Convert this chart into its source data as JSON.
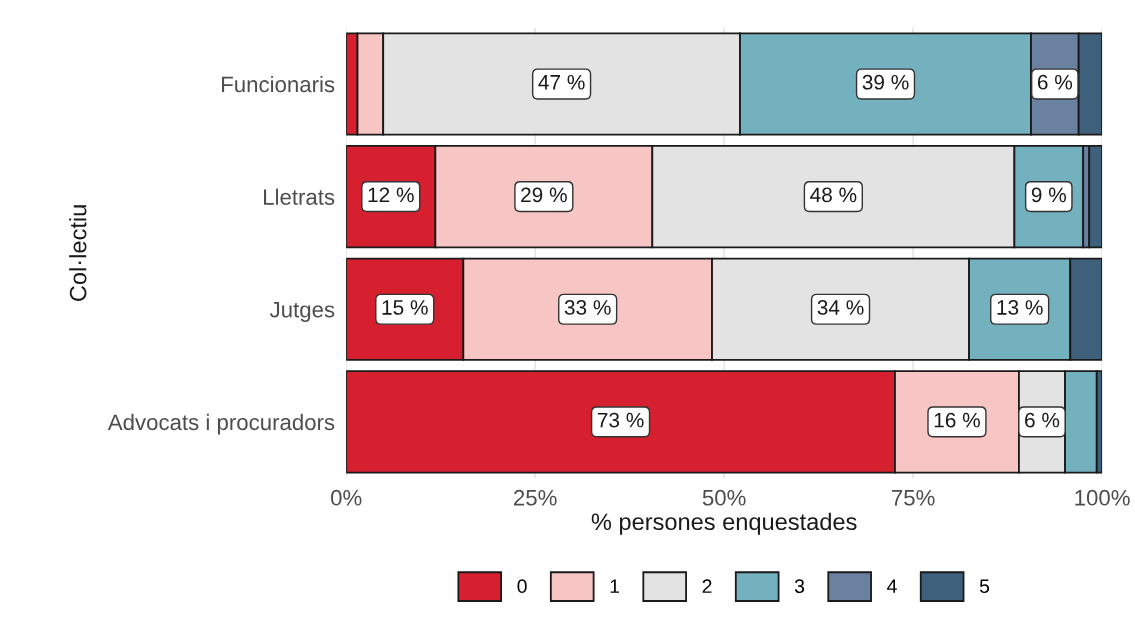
{
  "chart_data": {
    "type": "bar",
    "orientation": "horizontal",
    "stacked": true,
    "xlabel": "% persones enquestades",
    "ylabel": "Col·lectiu",
    "categories": [
      "Funcionaris",
      "Lletrats",
      "Jutges",
      "Advocats i procuradors"
    ],
    "xlim": [
      0,
      100
    ],
    "xticks": [
      {
        "value": 0,
        "label": "0%"
      },
      {
        "value": 25,
        "label": "25%"
      },
      {
        "value": 50,
        "label": "50%"
      },
      {
        "value": 75,
        "label": "75%"
      },
      {
        "value": 100,
        "label": "100%"
      }
    ],
    "grid": "x",
    "legend": "bottom",
    "series": [
      {
        "name": "0",
        "color": "#d7202f",
        "values": [
          1.5,
          11.8,
          15.5,
          72.6
        ],
        "value_labels": [
          null,
          "12 %",
          "15 %",
          "73 %"
        ]
      },
      {
        "name": "1",
        "color": "#f8c5c5",
        "values": [
          3.4,
          28.7,
          32.9,
          16.4
        ],
        "value_labels": [
          null,
          "29 %",
          "33 %",
          "16 %"
        ]
      },
      {
        "name": "2",
        "color": "#e3e3e3",
        "values": [
          47.2,
          47.9,
          34.0,
          6.1
        ],
        "value_labels": [
          "47 %",
          "48 %",
          "34 %",
          "6 %"
        ]
      },
      {
        "name": "3",
        "color": "#74b1be",
        "values": [
          38.5,
          9.1,
          13.4,
          4.2
        ],
        "value_labels": [
          "39 %",
          "9 %",
          "13 %",
          null
        ]
      },
      {
        "name": "4",
        "color": "#6a819f",
        "values": [
          6.3,
          0.8,
          0,
          0
        ],
        "value_labels": [
          "6 %",
          null,
          null,
          null
        ]
      },
      {
        "name": "5",
        "color": "#3f607a",
        "values": [
          3.1,
          1.7,
          4.2,
          0.7
        ],
        "value_labels": [
          null,
          null,
          null,
          null
        ]
      }
    ]
  }
}
